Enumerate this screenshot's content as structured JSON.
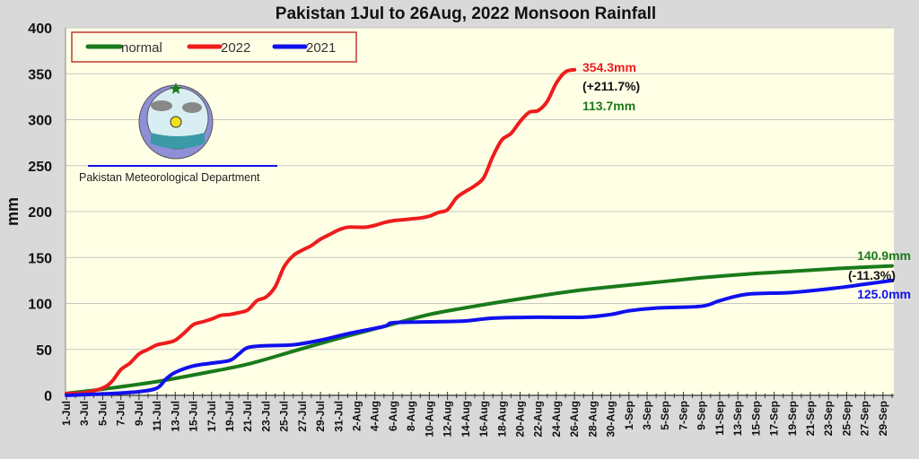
{
  "chart_data": {
    "type": "line",
    "title": "Pakistan 1Jul to 26Aug, 2022 Monsoon Rainfall",
    "xlabel": "",
    "ylabel": "mm",
    "ylim": [
      0,
      400
    ],
    "yticks": [
      0,
      50,
      100,
      150,
      200,
      250,
      300,
      350,
      400
    ],
    "xrange": [
      "1-Jul",
      "30-Sep"
    ],
    "xticks": [
      "1-Jul",
      "3-Jul",
      "5-Jul",
      "7-Jul",
      "9-Jul",
      "11-Jul",
      "13-Jul",
      "15-Jul",
      "17-Jul",
      "19-Jul",
      "21-Jul",
      "23-Jul",
      "25-Jul",
      "27-Jul",
      "29-Jul",
      "31-Jul",
      "2-Aug",
      "4-Aug",
      "6-Aug",
      "8-Aug",
      "10-Aug",
      "12-Aug",
      "14-Aug",
      "16-Aug",
      "18-Aug",
      "20-Aug",
      "22-Aug",
      "24-Aug",
      "26-Aug",
      "28-Aug",
      "30-Aug",
      "1-Sep",
      "3-Sep",
      "5-Sep",
      "7-Sep",
      "9-Sep",
      "11-Sep",
      "13-Sep",
      "15-Sep",
      "17-Sep",
      "19-Sep",
      "21-Sep",
      "23-Sep",
      "25-Sep",
      "27-Sep",
      "29-Sep"
    ],
    "grid": "horizontal",
    "legend_placement": "top-left",
    "series": [
      {
        "name": "normal",
        "color": "#1a7a1a",
        "points": [
          [
            "1-Jul",
            2
          ],
          [
            "6-Jul",
            8
          ],
          [
            "11-Jul",
            15
          ],
          [
            "16-Jul",
            24
          ],
          [
            "21-Jul",
            34
          ],
          [
            "26-Jul",
            48
          ],
          [
            "31-Jul",
            62
          ],
          [
            "5-Aug",
            75
          ],
          [
            "10-Aug",
            88
          ],
          [
            "15-Aug",
            97
          ],
          [
            "20-Aug",
            105
          ],
          [
            "26-Aug",
            113.7
          ],
          [
            "30-Aug",
            118
          ],
          [
            "4-Sep",
            123
          ],
          [
            "9-Sep",
            128
          ],
          [
            "14-Sep",
            132
          ],
          [
            "19-Sep",
            135
          ],
          [
            "24-Sep",
            138
          ],
          [
            "30-Sep",
            140.9
          ]
        ]
      },
      {
        "name": "2022",
        "color": "#ee1c1c",
        "points": [
          [
            "1-Jul",
            2
          ],
          [
            "3-Jul",
            3
          ],
          [
            "5-Jul",
            8
          ],
          [
            "6-Jul",
            15
          ],
          [
            "7-Jul",
            28
          ],
          [
            "8-Jul",
            35
          ],
          [
            "9-Jul",
            45
          ],
          [
            "10-Jul",
            50
          ],
          [
            "11-Jul",
            55
          ],
          [
            "12-Jul",
            57
          ],
          [
            "13-Jul",
            60
          ],
          [
            "14-Jul",
            68
          ],
          [
            "15-Jul",
            77
          ],
          [
            "16-Jul",
            80
          ],
          [
            "17-Jul",
            83
          ],
          [
            "18-Jul",
            87
          ],
          [
            "19-Jul",
            88
          ],
          [
            "20-Jul",
            90
          ],
          [
            "21-Jul",
            93
          ],
          [
            "22-Jul",
            103
          ],
          [
            "23-Jul",
            107
          ],
          [
            "24-Jul",
            118
          ],
          [
            "25-Jul",
            140
          ],
          [
            "26-Jul",
            152
          ],
          [
            "27-Jul",
            158
          ],
          [
            "28-Jul",
            163
          ],
          [
            "29-Jul",
            170
          ],
          [
            "30-Jul",
            175
          ],
          [
            "31-Jul",
            180
          ],
          [
            "1-Aug",
            183
          ],
          [
            "2-Aug",
            183
          ],
          [
            "3-Aug",
            183
          ],
          [
            "4-Aug",
            185
          ],
          [
            "5-Aug",
            188
          ],
          [
            "6-Aug",
            190
          ],
          [
            "7-Aug",
            191
          ],
          [
            "8-Aug",
            192
          ],
          [
            "9-Aug",
            193
          ],
          [
            "10-Aug",
            195
          ],
          [
            "11-Aug",
            199
          ],
          [
            "12-Aug",
            202
          ],
          [
            "13-Aug",
            215
          ],
          [
            "14-Aug",
            222
          ],
          [
            "15-Aug",
            228
          ],
          [
            "16-Aug",
            237
          ],
          [
            "17-Aug",
            260
          ],
          [
            "18-Aug",
            278
          ],
          [
            "19-Aug",
            285
          ],
          [
            "20-Aug",
            298
          ],
          [
            "21-Aug",
            308
          ],
          [
            "22-Aug",
            310
          ],
          [
            "23-Aug",
            320
          ],
          [
            "24-Aug",
            340
          ],
          [
            "25-Aug",
            352
          ],
          [
            "26-Aug",
            354.3
          ]
        ]
      },
      {
        "name": "2021",
        "color": "#1010ee",
        "points": [
          [
            "1-Jul",
            0
          ],
          [
            "6-Jul",
            2
          ],
          [
            "9-Jul",
            4
          ],
          [
            "11-Jul",
            8
          ],
          [
            "12-Jul",
            18
          ],
          [
            "13-Jul",
            25
          ],
          [
            "15-Jul",
            32
          ],
          [
            "17-Jul",
            35
          ],
          [
            "19-Jul",
            38
          ],
          [
            "20-Jul",
            45
          ],
          [
            "21-Jul",
            52
          ],
          [
            "23-Jul",
            54
          ],
          [
            "26-Jul",
            55
          ],
          [
            "29-Jul",
            60
          ],
          [
            "1-Aug",
            67
          ],
          [
            "5-Aug",
            75
          ],
          [
            "6-Aug",
            79
          ],
          [
            "10-Aug",
            80
          ],
          [
            "14-Aug",
            81
          ],
          [
            "17-Aug",
            84
          ],
          [
            "22-Aug",
            85
          ],
          [
            "27-Aug",
            85
          ],
          [
            "30-Aug",
            88
          ],
          [
            "1-Sep",
            92
          ],
          [
            "4-Sep",
            95
          ],
          [
            "9-Sep",
            97
          ],
          [
            "11-Sep",
            103
          ],
          [
            "14-Sep",
            110
          ],
          [
            "19-Sep",
            112
          ],
          [
            "24-Sep",
            117
          ],
          [
            "27-Sep",
            121
          ],
          [
            "30-Sep",
            125
          ]
        ]
      }
    ],
    "annotations": {
      "r2022_total": "354.3mm",
      "r2022_pct": "(+211.7%)",
      "r2022_normal": "113.7mm",
      "season_normal": "140.9mm",
      "r2021_pct": "(-11.3%)",
      "r2021_total": "125.0mm"
    }
  },
  "logo": {
    "caption": "Pakistan Meteorological Department"
  }
}
